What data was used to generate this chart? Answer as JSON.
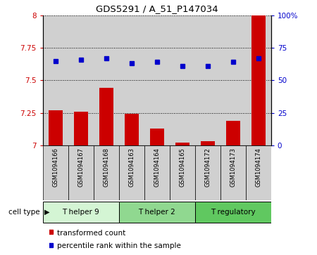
{
  "title": "GDS5291 / A_51_P147034",
  "samples": [
    "GSM1094166",
    "GSM1094167",
    "GSM1094168",
    "GSM1094163",
    "GSM1094164",
    "GSM1094165",
    "GSM1094172",
    "GSM1094173",
    "GSM1094174"
  ],
  "bar_heights": [
    7.27,
    7.26,
    7.44,
    7.24,
    7.13,
    7.02,
    7.03,
    7.19,
    8.0
  ],
  "blue_dots": [
    7.65,
    7.66,
    7.67,
    7.63,
    7.64,
    7.61,
    7.61,
    7.64,
    7.67
  ],
  "ylim_left": [
    7.0,
    8.0
  ],
  "ylim_right": [
    0,
    100
  ],
  "yticks_left": [
    7.0,
    7.25,
    7.5,
    7.75,
    8.0
  ],
  "yticks_right": [
    0,
    25,
    50,
    75,
    100
  ],
  "ytick_labels_left": [
    "7",
    "7.25",
    "7.5",
    "7.75",
    "8"
  ],
  "ytick_labels_right": [
    "0",
    "25",
    "50",
    "75",
    "100%"
  ],
  "cell_types": [
    {
      "label": "T helper 9",
      "start": 0,
      "end": 3,
      "color": "#d4f5d4"
    },
    {
      "label": "T helper 2",
      "start": 3,
      "end": 6,
      "color": "#90d890"
    },
    {
      "label": "T regulatory",
      "start": 6,
      "end": 9,
      "color": "#60c860"
    }
  ],
  "bar_color": "#cc0000",
  "dot_color": "#0000cc",
  "bar_width": 0.55,
  "left_tick_color": "#cc0000",
  "right_tick_color": "#0000cc",
  "bar_bg_color": "#d0d0d0",
  "legend_items": [
    "transformed count",
    "percentile rank within the sample"
  ],
  "cell_type_label": "cell type"
}
